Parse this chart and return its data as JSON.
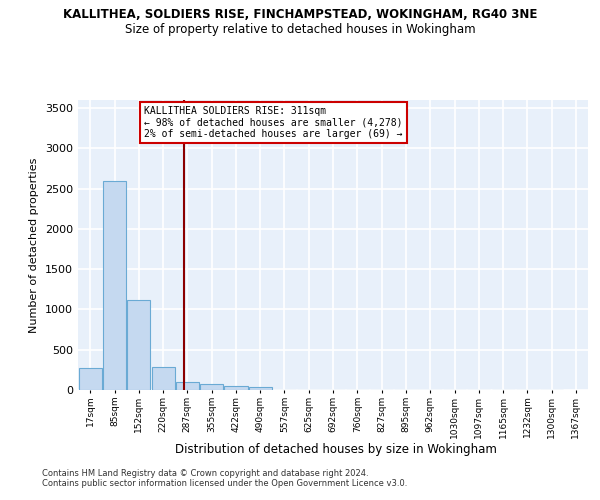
{
  "title1": "KALLITHEA, SOLDIERS RISE, FINCHAMPSTEAD, WOKINGHAM, RG40 3NE",
  "title2": "Size of property relative to detached houses in Wokingham",
  "xlabel": "Distribution of detached houses by size in Wokingham",
  "ylabel": "Number of detached properties",
  "bar_color": "#c5d9f0",
  "bar_edge_color": "#6aaad4",
  "annotation_text": "KALLITHEA SOLDIERS RISE: 311sqm\n← 98% of detached houses are smaller (4,278)\n2% of semi-detached houses are larger (69) →",
  "property_line_x": 311,
  "categories": [
    "17sqm",
    "85sqm",
    "152sqm",
    "220sqm",
    "287sqm",
    "355sqm",
    "422sqm",
    "490sqm",
    "557sqm",
    "625sqm",
    "692sqm",
    "760sqm",
    "827sqm",
    "895sqm",
    "962sqm",
    "1030sqm",
    "1097sqm",
    "1165sqm",
    "1232sqm",
    "1300sqm",
    "1367sqm"
  ],
  "bin_edges": [
    17,
    85,
    152,
    220,
    287,
    355,
    422,
    490,
    557,
    625,
    692,
    760,
    827,
    895,
    962,
    1030,
    1097,
    1165,
    1232,
    1300,
    1367
  ],
  "values": [
    270,
    2600,
    1120,
    280,
    95,
    70,
    50,
    35,
    0,
    0,
    0,
    0,
    0,
    0,
    0,
    0,
    0,
    0,
    0,
    0
  ],
  "ylim": [
    0,
    3600
  ],
  "yticks": [
    0,
    500,
    1000,
    1500,
    2000,
    2500,
    3000,
    3500
  ],
  "footnote1": "Contains HM Land Registry data © Crown copyright and database right 2024.",
  "footnote2": "Contains public sector information licensed under the Open Government Licence v3.0.",
  "background_color": "#e8f0fa",
  "grid_color": "#ffffff",
  "annotation_box_color": "#ffffff",
  "annotation_box_edge": "#cc0000",
  "vline_color": "#8b0000"
}
